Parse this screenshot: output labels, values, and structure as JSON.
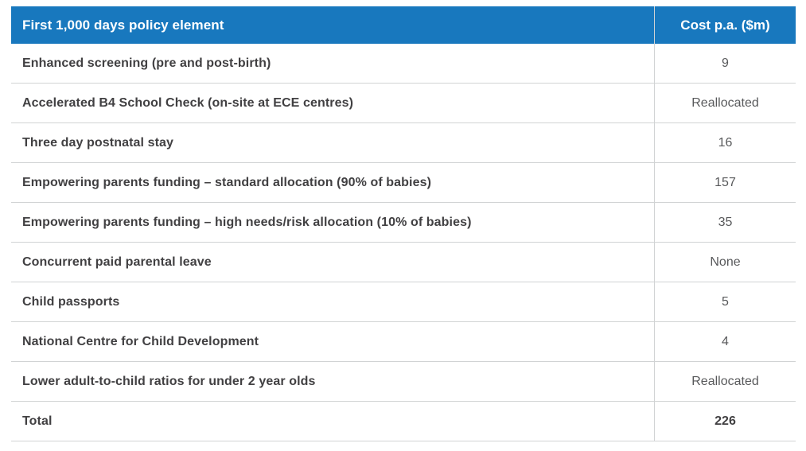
{
  "colors": {
    "header_bg": "#1878be",
    "header_text": "#ffffff",
    "row_text": "#414042",
    "cost_text": "#58595b",
    "border": "#d1d3d4"
  },
  "table": {
    "header": {
      "policy_label": "First 1,000 days policy element",
      "cost_label": "Cost p.a. ($m)"
    },
    "rows": [
      {
        "policy": "Enhanced screening (pre and post-birth)",
        "cost": "9"
      },
      {
        "policy": "Accelerated B4 School Check (on-site at ECE centres)",
        "cost": "Reallocated"
      },
      {
        "policy": "Three day postnatal stay",
        "cost": "16"
      },
      {
        "policy": "Empowering parents funding – standard allocation (90% of babies)",
        "cost": "157"
      },
      {
        "policy": "Empowering parents funding – high needs/risk allocation (10% of babies)",
        "cost": "35"
      },
      {
        "policy": "Concurrent paid parental leave",
        "cost": "None"
      },
      {
        "policy": "Child passports",
        "cost": "5"
      },
      {
        "policy": "National Centre for Child Development",
        "cost": "4"
      },
      {
        "policy": "Lower adult-to-child ratios for under 2 year olds",
        "cost": "Reallocated"
      }
    ],
    "total": {
      "label": "Total",
      "value": "226"
    }
  }
}
